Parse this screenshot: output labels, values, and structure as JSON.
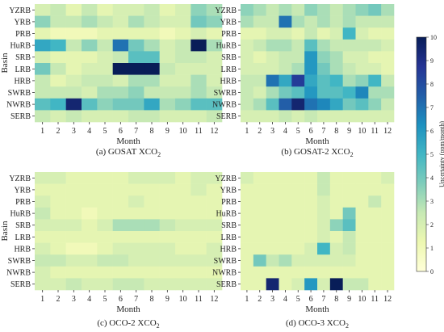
{
  "chart_data": {
    "type": "heatmap",
    "rows": [
      "YZRB",
      "YRB",
      "PRB",
      "HuRB",
      "SRB",
      "LRB",
      "HRB",
      "SWRB",
      "NWRB",
      "SERB"
    ],
    "columns": [
      "1",
      "2",
      "3",
      "4",
      "5",
      "6",
      "7",
      "8",
      "9",
      "10",
      "11",
      "12"
    ],
    "xlabel": "Month",
    "ylabel": "Basin",
    "colorbar": {
      "label": "Uncertainty (ppm/month)",
      "min": 0,
      "max": 10,
      "ticks": [
        "0",
        "1",
        "2",
        "3",
        "4",
        "5",
        "6",
        "7",
        "8",
        "9",
        "10"
      ],
      "colors": [
        "#ffffd9",
        "#edf8b1",
        "#c7e9b4",
        "#7fcdbb",
        "#41b6c4",
        "#1d91c0",
        "#225ea8",
        "#253494",
        "#081d58"
      ]
    },
    "panels": [
      {
        "title": "(a) GOSAT XCO",
        "title_sub": "2",
        "values": [
          [
            2.0,
            2.5,
            1.5,
            2.5,
            1.5,
            2.0,
            2.0,
            2.5,
            1.5,
            2.0,
            3.5,
            3.0
          ],
          [
            3.5,
            2.5,
            2.5,
            3.0,
            2.5,
            2.0,
            3.0,
            2.5,
            2.0,
            2.0,
            4.0,
            3.5
          ],
          [
            1.5,
            1.0,
            1.0,
            1.0,
            1.5,
            1.5,
            1.5,
            1.5,
            1.0,
            1.5,
            2.0,
            1.5
          ],
          [
            5.5,
            5.0,
            2.5,
            3.5,
            2.5,
            7.0,
            4.0,
            3.0,
            2.0,
            2.5,
            10.0,
            3.0
          ],
          [
            2.0,
            1.5,
            1.5,
            1.5,
            2.0,
            2.5,
            4.5,
            4.5,
            2.0,
            2.5,
            2.5,
            2.0
          ],
          [
            4.0,
            2.5,
            1.5,
            2.0,
            2.0,
            10.0,
            10.0,
            10.0,
            2.5,
            2.0,
            2.0,
            2.0
          ],
          [
            2.5,
            1.5,
            2.0,
            2.5,
            2.5,
            2.0,
            3.0,
            3.0,
            2.0,
            2.0,
            3.0,
            2.0
          ],
          [
            2.5,
            2.5,
            2.5,
            2.0,
            3.0,
            3.0,
            3.5,
            2.5,
            2.5,
            2.5,
            3.0,
            2.5
          ],
          [
            4.5,
            5.0,
            9.5,
            4.5,
            3.5,
            4.0,
            4.0,
            5.5,
            3.0,
            3.5,
            4.5,
            4.5
          ],
          [
            2.5,
            2.0,
            2.5,
            2.0,
            2.0,
            2.0,
            2.5,
            2.5,
            2.0,
            2.0,
            2.0,
            2.5
          ]
        ]
      },
      {
        "title": "(b) GOSAT-2 XCO",
        "title_sub": "2",
        "values": [
          [
            3.5,
            3.0,
            2.5,
            3.0,
            2.5,
            3.5,
            3.0,
            2.5,
            3.0,
            3.5,
            4.0,
            3.0
          ],
          [
            3.0,
            2.5,
            2.5,
            7.0,
            3.0,
            2.5,
            3.0,
            2.5,
            3.0,
            2.5,
            2.5,
            2.5
          ],
          [
            1.5,
            1.5,
            2.0,
            2.0,
            1.5,
            2.5,
            1.5,
            2.0,
            5.0,
            2.0,
            1.5,
            1.5
          ],
          [
            2.0,
            2.5,
            3.0,
            3.0,
            2.5,
            4.5,
            3.0,
            2.5,
            2.5,
            2.5,
            2.5,
            2.0
          ],
          [
            2.0,
            1.5,
            2.0,
            2.5,
            2.5,
            6.0,
            3.5,
            3.0,
            2.0,
            2.0,
            1.5,
            1.5
          ],
          [
            2.0,
            2.0,
            2.0,
            2.5,
            3.0,
            6.0,
            4.0,
            3.0,
            2.5,
            2.0,
            2.0,
            1.5
          ],
          [
            2.5,
            2.5,
            7.0,
            5.5,
            8.5,
            5.5,
            4.5,
            5.0,
            3.0,
            3.5,
            5.0,
            2.5
          ],
          [
            2.5,
            2.0,
            3.0,
            4.0,
            4.5,
            6.0,
            4.5,
            4.5,
            5.0,
            6.5,
            3.0,
            3.0
          ],
          [
            2.5,
            3.0,
            4.5,
            7.5,
            9.5,
            7.0,
            6.5,
            5.5,
            4.0,
            4.5,
            3.5,
            2.5
          ],
          [
            2.0,
            2.0,
            2.0,
            2.5,
            2.0,
            2.5,
            2.0,
            2.0,
            2.0,
            2.0,
            2.0,
            2.0
          ]
        ]
      },
      {
        "title": "(c) OCO-2 XCO",
        "title_sub": "2",
        "values": [
          [
            2.0,
            2.0,
            1.5,
            1.5,
            1.5,
            1.5,
            2.0,
            2.0,
            2.0,
            1.5,
            2.0,
            2.0
          ],
          [
            1.5,
            1.5,
            1.5,
            1.5,
            1.5,
            1.5,
            1.5,
            1.5,
            1.5,
            1.5,
            2.0,
            1.5
          ],
          [
            2.0,
            1.5,
            1.5,
            1.5,
            1.5,
            1.5,
            2.0,
            1.5,
            1.5,
            1.5,
            1.5,
            1.5
          ],
          [
            2.5,
            1.5,
            1.5,
            1.0,
            1.5,
            1.5,
            1.5,
            1.5,
            1.5,
            1.5,
            1.5,
            1.5
          ],
          [
            2.0,
            2.0,
            2.0,
            1.5,
            2.0,
            3.0,
            3.0,
            3.0,
            2.5,
            2.0,
            2.0,
            2.0
          ],
          [
            1.5,
            1.5,
            1.5,
            1.5,
            1.5,
            1.5,
            1.5,
            1.5,
            1.5,
            1.5,
            1.5,
            1.5
          ],
          [
            2.0,
            1.5,
            1.0,
            1.0,
            1.5,
            2.0,
            2.0,
            2.0,
            2.0,
            1.5,
            1.5,
            2.0
          ],
          [
            2.5,
            2.5,
            2.0,
            2.0,
            2.5,
            2.5,
            2.0,
            2.0,
            2.0,
            2.0,
            2.0,
            2.0
          ],
          [
            2.0,
            1.5,
            1.5,
            1.5,
            1.5,
            1.5,
            1.5,
            1.5,
            1.5,
            1.5,
            1.5,
            1.5
          ],
          [
            2.0,
            2.0,
            2.5,
            2.0,
            2.0,
            2.5,
            2.5,
            2.0,
            2.0,
            2.0,
            2.0,
            2.0
          ]
        ]
      },
      {
        "title": "(d) OCO-3 XCO",
        "title_sub": "2",
        "values": [
          [
            2.0,
            1.5,
            1.5,
            1.5,
            1.5,
            1.5,
            2.5,
            1.5,
            1.5,
            1.5,
            1.5,
            2.0
          ],
          [
            1.5,
            1.5,
            1.5,
            1.5,
            1.5,
            1.5,
            2.5,
            1.5,
            1.5,
            1.5,
            1.5,
            1.5
          ],
          [
            1.5,
            1.5,
            1.5,
            1.5,
            1.5,
            1.5,
            2.0,
            1.5,
            1.5,
            1.5,
            2.5,
            1.5
          ],
          [
            1.5,
            1.5,
            1.5,
            1.5,
            1.5,
            1.5,
            2.0,
            1.5,
            4.0,
            1.5,
            1.5,
            1.5
          ],
          [
            1.5,
            1.5,
            1.5,
            1.5,
            1.5,
            1.5,
            2.0,
            3.5,
            4.5,
            1.5,
            1.5,
            1.5
          ],
          [
            1.5,
            1.5,
            1.5,
            1.5,
            1.5,
            1.5,
            2.0,
            1.5,
            2.5,
            1.5,
            1.5,
            1.5
          ],
          [
            1.5,
            1.5,
            1.5,
            1.5,
            1.5,
            2.0,
            5.0,
            2.0,
            2.5,
            1.5,
            1.5,
            1.5
          ],
          [
            1.5,
            4.0,
            2.5,
            3.0,
            2.0,
            2.0,
            2.0,
            2.0,
            2.0,
            1.5,
            1.5,
            1.5
          ],
          [
            1.5,
            1.5,
            1.5,
            1.5,
            1.5,
            1.5,
            1.5,
            1.5,
            1.5,
            1.5,
            1.5,
            1.5
          ],
          [
            1.5,
            1.5,
            9.5,
            1.5,
            2.0,
            6.0,
            2.0,
            10.0,
            2.5,
            2.5,
            1.5,
            1.5
          ]
        ]
      }
    ]
  }
}
